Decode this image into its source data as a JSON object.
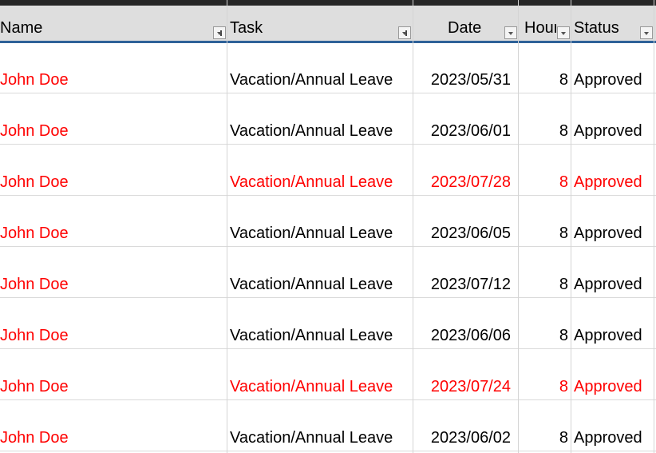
{
  "headers": {
    "name": "Name",
    "task": "Task",
    "date": "Date",
    "hours": "Hours",
    "status": "Status"
  },
  "filter_icons": {
    "name": "filter-active",
    "task": "filter-active",
    "date": "dropdown",
    "hours": "dropdown",
    "status": "dropdown"
  },
  "highlight_color": "#ff0000",
  "rows": [
    {
      "name": "John Doe",
      "task": "Vacation/Annual Leave",
      "date": "2023/05/31",
      "hours": "8",
      "status": "Approved",
      "highlight": false
    },
    {
      "name": "John Doe",
      "task": "Vacation/Annual Leave",
      "date": "2023/06/01",
      "hours": "8",
      "status": "Approved",
      "highlight": false
    },
    {
      "name": "John Doe",
      "task": "Vacation/Annual Leave",
      "date": "2023/07/28",
      "hours": "8",
      "status": "Approved",
      "highlight": true
    },
    {
      "name": "John Doe",
      "task": "Vacation/Annual Leave",
      "date": "2023/06/05",
      "hours": "8",
      "status": "Approved",
      "highlight": false
    },
    {
      "name": "John Doe",
      "task": "Vacation/Annual Leave",
      "date": "2023/07/12",
      "hours": "8",
      "status": "Approved",
      "highlight": false
    },
    {
      "name": "John Doe",
      "task": "Vacation/Annual Leave",
      "date": "2023/06/06",
      "hours": "8",
      "status": "Approved",
      "highlight": false
    },
    {
      "name": "John Doe",
      "task": "Vacation/Annual Leave",
      "date": "2023/07/24",
      "hours": "8",
      "status": "Approved",
      "highlight": true
    },
    {
      "name": "John Doe",
      "task": "Vacation/Annual Leave",
      "date": "2023/06/02",
      "hours": "8",
      "status": "Approved",
      "highlight": false
    }
  ]
}
